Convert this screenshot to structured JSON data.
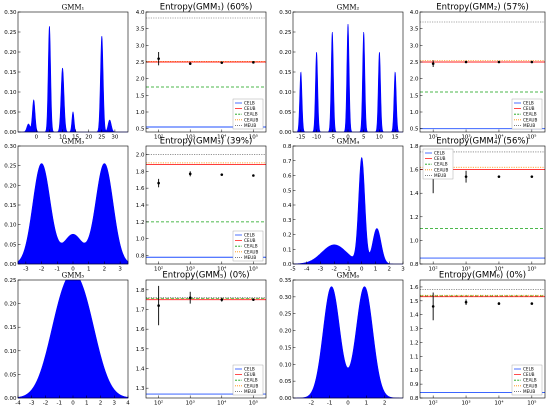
{
  "colors": {
    "fill": "#0000ff",
    "celb": "#1f4fff",
    "ceub": "#ff2020",
    "cealb": "#10a010",
    "ceaub": "#ff8c00",
    "meub": "#555555",
    "points": "#000000"
  },
  "legend_labels": [
    "CELB",
    "CEUB",
    "CEALB",
    "CEAUB",
    "MEUB"
  ],
  "chart_data": [
    {
      "id": "gmm1-density",
      "type": "area",
      "title": "GMM₁",
      "xlim": [
        -7,
        35
      ],
      "ylim": [
        0,
        0.3
      ],
      "xticks": [
        "0",
        "5",
        "10",
        "15",
        "20",
        "25",
        "30"
      ],
      "xtick_vals": [
        0,
        5,
        10,
        15,
        20,
        25,
        30
      ],
      "yticks": [
        "0.00",
        "0.05",
        "0.10",
        "0.15",
        "0.20",
        "0.25",
        "0.30"
      ],
      "ytick_vals": [
        0,
        0.05,
        0.1,
        0.15,
        0.2,
        0.25,
        0.3
      ],
      "components": [
        {
          "mu": -3,
          "sigma": 0.6,
          "height": 0.02
        },
        {
          "mu": -1,
          "sigma": 0.5,
          "height": 0.08
        },
        {
          "mu": 5,
          "sigma": 0.45,
          "height": 0.265
        },
        {
          "mu": 10,
          "sigma": 0.55,
          "height": 0.16
        },
        {
          "mu": 14,
          "sigma": 0.4,
          "height": 0.05
        },
        {
          "mu": 25,
          "sigma": 0.5,
          "height": 0.24
        },
        {
          "mu": 28,
          "sigma": 0.6,
          "height": 0.03
        }
      ]
    },
    {
      "id": "gmm1-entropy",
      "type": "scatter",
      "title": "Entropy(GMM₁) (60%)",
      "x": [
        100,
        1000,
        10000,
        100000
      ],
      "y": [
        2.6,
        2.45,
        2.48,
        2.49
      ],
      "yerr": [
        0.2,
        0.04,
        0.01,
        0.005
      ],
      "xticks": [
        "10²",
        "10³",
        "10⁴",
        "10⁵"
      ],
      "ylim": [
        0.4,
        4.0
      ],
      "yticks": [
        "0.5",
        "1.0",
        "1.5",
        "2.0",
        "2.5",
        "3.0",
        "3.5",
        "4.0"
      ],
      "ytick_vals": [
        0.5,
        1,
        1.5,
        2,
        2.5,
        3,
        3.5,
        4
      ],
      "bounds": {
        "celb": 0.55,
        "ceub": 2.5,
        "cealb": 1.75,
        "ceaub": 2.52,
        "meub": 3.82
      },
      "legend_pos": "bottom-right"
    },
    {
      "id": "gmm2-density",
      "type": "area",
      "title": "GMM₂",
      "xlim": [
        -17.5,
        17.5
      ],
      "ylim": [
        0,
        0.3
      ],
      "xticks": [
        "-15",
        "-10",
        "-5",
        "0",
        "5",
        "10",
        "15"
      ],
      "xtick_vals": [
        -15,
        -10,
        -5,
        0,
        5,
        10,
        15
      ],
      "yticks": [
        "0.00",
        "0.05",
        "0.10",
        "0.15",
        "0.20",
        "0.25",
        "0.30"
      ],
      "ytick_vals": [
        0,
        0.05,
        0.1,
        0.15,
        0.2,
        0.25,
        0.3
      ],
      "components": [
        {
          "mu": -15,
          "sigma": 0.35,
          "height": 0.15
        },
        {
          "mu": -10,
          "sigma": 0.35,
          "height": 0.2
        },
        {
          "mu": -5,
          "sigma": 0.35,
          "height": 0.25
        },
        {
          "mu": 0,
          "sigma": 0.35,
          "height": 0.27
        },
        {
          "mu": 5,
          "sigma": 0.35,
          "height": 0.25
        },
        {
          "mu": 10,
          "sigma": 0.35,
          "height": 0.2
        },
        {
          "mu": 15,
          "sigma": 0.35,
          "height": 0.15
        }
      ]
    },
    {
      "id": "gmm2-entropy",
      "type": "scatter",
      "title": "Entropy(GMM₂) (57%)",
      "x": [
        100,
        1000,
        10000,
        100000
      ],
      "y": [
        2.45,
        2.5,
        2.5,
        2.5
      ],
      "yerr": [
        0.1,
        0.02,
        0.01,
        0.005
      ],
      "xticks": [
        "10²",
        "10³",
        "10⁴",
        "10⁵"
      ],
      "ylim": [
        0.4,
        4.0
      ],
      "yticks": [
        "0.5",
        "1.0",
        "1.5",
        "2.0",
        "2.5",
        "3.0",
        "3.5",
        "4.0"
      ],
      "ytick_vals": [
        0.5,
        1,
        1.5,
        2,
        2.5,
        3,
        3.5,
        4
      ],
      "bounds": {
        "celb": 0.5,
        "ceub": 2.5,
        "cealb": 1.6,
        "ceaub": 2.55,
        "meub": 3.7
      },
      "legend_pos": "bottom-right"
    },
    {
      "id": "gmm3-density",
      "type": "area",
      "title": "GMM₃",
      "xlim": [
        -3.5,
        3.5
      ],
      "ylim": [
        0,
        0.3
      ],
      "xticks": [
        "-3",
        "-2",
        "-1",
        "0",
        "1",
        "2",
        "3"
      ],
      "xtick_vals": [
        -3,
        -2,
        -1,
        0,
        1,
        2,
        3
      ],
      "yticks": [
        "0.00",
        "0.05",
        "0.10",
        "0.15",
        "0.20",
        "0.25",
        "0.30"
      ],
      "ytick_vals": [
        0,
        0.05,
        0.1,
        0.15,
        0.2,
        0.25,
        0.3
      ],
      "components": [
        {
          "mu": -2,
          "sigma": 0.55,
          "height": 0.255
        },
        {
          "mu": 0,
          "sigma": 0.6,
          "height": 0.075
        },
        {
          "mu": 2,
          "sigma": 0.55,
          "height": 0.255
        }
      ]
    },
    {
      "id": "gmm3-entropy",
      "type": "scatter",
      "title": "Entropy(GMM₃) (39%)",
      "x": [
        100,
        1000,
        10000,
        100000
      ],
      "y": [
        1.66,
        1.77,
        1.76,
        1.75
      ],
      "yerr": [
        0.05,
        0.03,
        0.01,
        0.005
      ],
      "xticks": [
        "10²",
        "10³",
        "10⁴",
        "10⁵"
      ],
      "ylim": [
        0.7,
        2.1
      ],
      "yticks": [
        "0.8",
        "1.0",
        "1.2",
        "1.4",
        "1.6",
        "1.8",
        "2.0"
      ],
      "ytick_vals": [
        0.8,
        1,
        1.2,
        1.4,
        1.6,
        1.8,
        2
      ],
      "bounds": {
        "celb": 0.78,
        "ceub": 1.88,
        "cealb": 1.2,
        "ceaub": 1.9,
        "meub": 2.0
      },
      "legend_pos": "bottom-right"
    },
    {
      "id": "gmm4-density",
      "type": "area",
      "title": "GMM₄",
      "xlim": [
        -5,
        3
      ],
      "ylim": [
        0,
        0.8
      ],
      "xticks": [
        "-5",
        "-4",
        "-3",
        "-2",
        "-1",
        "0",
        "1",
        "2",
        "3"
      ],
      "xtick_vals": [
        -5,
        -4,
        -3,
        -2,
        -1,
        0,
        1,
        2,
        3
      ],
      "yticks": [
        "0.0",
        "0.1",
        "0.2",
        "0.3",
        "0.4",
        "0.5",
        "0.6",
        "0.7",
        "0.8"
      ],
      "ytick_vals": [
        0,
        0.1,
        0.2,
        0.3,
        0.4,
        0.5,
        0.6,
        0.7,
        0.8
      ],
      "components": [
        {
          "mu": -2,
          "sigma": 0.9,
          "height": 0.13
        },
        {
          "mu": 0,
          "sigma": 0.22,
          "height": 0.71
        },
        {
          "mu": 1.1,
          "sigma": 0.3,
          "height": 0.24
        }
      ]
    },
    {
      "id": "gmm4-entropy",
      "type": "scatter",
      "title": "Entropy(GMM₄) (56%)",
      "x": [
        100,
        1000,
        10000,
        100000
      ],
      "y": [
        1.55,
        1.54,
        1.54,
        1.54
      ],
      "yerr": [
        0.15,
        0.05,
        0.01,
        0.005
      ],
      "xticks": [
        "10²",
        "10³",
        "10⁴",
        "10⁵"
      ],
      "ylim": [
        0.8,
        1.8
      ],
      "yticks": [
        "0.8",
        "1.0",
        "1.2",
        "1.4",
        "1.6",
        "1.8"
      ],
      "ytick_vals": [
        0.8,
        1,
        1.2,
        1.4,
        1.6,
        1.8
      ],
      "bounds": {
        "celb": 0.85,
        "ceub": 1.6,
        "cealb": 1.1,
        "ceaub": 1.62,
        "meub": 1.75
      },
      "legend_pos": "top-left"
    },
    {
      "id": "gmm5-density",
      "type": "area",
      "title": "GMM₅",
      "xlim": [
        -4,
        4
      ],
      "ylim": [
        0,
        0.25
      ],
      "xticks": [
        "-4",
        "-3",
        "-2",
        "-1",
        "0",
        "1",
        "2",
        "3",
        "4"
      ],
      "xtick_vals": [
        -4,
        -3,
        -2,
        -1,
        0,
        1,
        2,
        3,
        4
      ],
      "yticks": [
        "0.00",
        "0.05",
        "0.10",
        "0.15",
        "0.20",
        "0.25"
      ],
      "ytick_vals": [
        0,
        0.05,
        0.1,
        0.15,
        0.2,
        0.25
      ],
      "components": [
        {
          "mu": -1,
          "sigma": 1.0,
          "height": 0.12
        },
        {
          "mu": 0,
          "sigma": 1.0,
          "height": 0.12
        },
        {
          "mu": 1,
          "sigma": 1.0,
          "height": 0.12
        }
      ]
    },
    {
      "id": "gmm5-entropy",
      "type": "scatter",
      "title": "Entropy(GMM₅) (0%)",
      "x": [
        100,
        1000,
        10000,
        100000
      ],
      "y": [
        1.72,
        1.76,
        1.75,
        1.75
      ],
      "yerr": [
        0.1,
        0.03,
        0.01,
        0.005
      ],
      "xticks": [
        "10²",
        "10³",
        "10⁴",
        "10⁵"
      ],
      "ylim": [
        1.25,
        1.85
      ],
      "yticks": [
        "1.3",
        "1.4",
        "1.5",
        "1.6",
        "1.7",
        "1.8"
      ],
      "ytick_vals": [
        1.3,
        1.4,
        1.5,
        1.6,
        1.7,
        1.8
      ],
      "bounds": {
        "celb": 1.27,
        "ceub": 1.75,
        "cealb": 1.755,
        "ceaub": 1.755,
        "meub": 1.76
      },
      "legend_pos": "bottom-right"
    },
    {
      "id": "gmm6-density",
      "type": "area",
      "title": "GMM₆",
      "xlim": [
        -3,
        3
      ],
      "ylim": [
        0,
        0.35
      ],
      "xticks": [
        "-2",
        "-1",
        "0",
        "1",
        "2"
      ],
      "xtick_vals": [
        -2,
        -1,
        0,
        1,
        2
      ],
      "yticks": [
        "0.00",
        "0.05",
        "0.10",
        "0.15",
        "0.20",
        "0.25",
        "0.30",
        "0.35"
      ],
      "ytick_vals": [
        0,
        0.05,
        0.1,
        0.15,
        0.2,
        0.25,
        0.3,
        0.35
      ],
      "components": [
        {
          "mu": -0.9,
          "sigma": 0.45,
          "height": 0.33
        },
        {
          "mu": 0.9,
          "sigma": 0.45,
          "height": 0.33
        }
      ]
    },
    {
      "id": "gmm6-entropy",
      "type": "scatter",
      "title": "Entropy(GMM₆) (0%)",
      "x": [
        100,
        1000,
        10000,
        100000
      ],
      "y": [
        1.46,
        1.49,
        1.48,
        1.48
      ],
      "yerr": [
        0.1,
        0.02,
        0.01,
        0.005
      ],
      "xticks": [
        "10²",
        "10³",
        "10⁴",
        "10⁵"
      ],
      "ylim": [
        0.8,
        1.65
      ],
      "yticks": [
        "0.8",
        "0.9",
        "1.0",
        "1.1",
        "1.2",
        "1.3",
        "1.4",
        "1.5",
        "1.6"
      ],
      "ytick_vals": [
        0.8,
        0.9,
        1,
        1.1,
        1.2,
        1.3,
        1.4,
        1.5,
        1.6
      ],
      "bounds": {
        "celb": 0.84,
        "ceub": 1.53,
        "cealb": 1.535,
        "ceaub": 1.54,
        "meub": 1.58
      },
      "legend_pos": "bottom-right"
    }
  ]
}
